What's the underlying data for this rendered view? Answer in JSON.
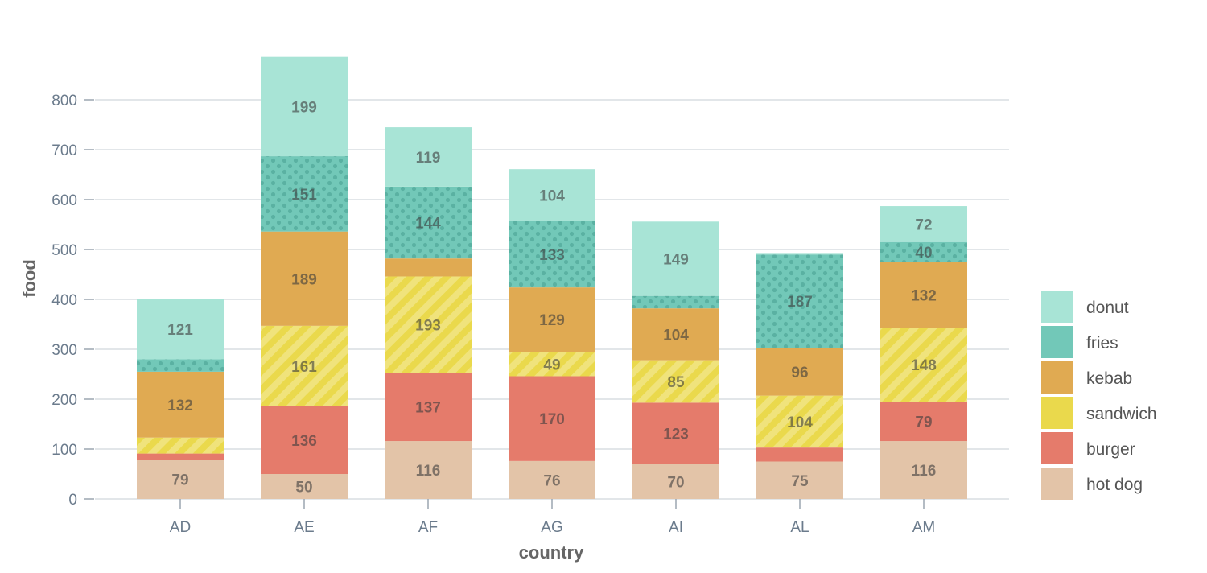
{
  "chart_data": {
    "type": "bar",
    "stacked": true,
    "categories": [
      "AD",
      "AE",
      "AF",
      "AG",
      "AI",
      "AL",
      "AM"
    ],
    "series": [
      {
        "name": "hot dog",
        "color": "#e3c4a8",
        "pattern": "none",
        "values": [
          79,
          50,
          116,
          76,
          70,
          75,
          116
        ]
      },
      {
        "name": "burger",
        "color": "#e57b6b",
        "pattern": "none",
        "values": [
          12,
          136,
          137,
          170,
          123,
          28,
          79
        ]
      },
      {
        "name": "sandwich",
        "color": "#ead94c",
        "pattern": "stripes",
        "values": [
          32,
          161,
          193,
          49,
          85,
          104,
          148
        ]
      },
      {
        "name": "kebab",
        "color": "#e0aa52",
        "pattern": "none",
        "values": [
          132,
          189,
          36,
          129,
          104,
          96,
          132
        ]
      },
      {
        "name": "fries",
        "color": "#72c8b8",
        "pattern": "dots",
        "values": [
          25,
          151,
          144,
          133,
          25,
          187,
          40
        ]
      },
      {
        "name": "donut",
        "color": "#a8e4d6",
        "pattern": "none",
        "values": [
          121,
          199,
          119,
          104,
          149,
          3,
          72
        ]
      }
    ],
    "data_labels": [
      [
        "79",
        "50",
        "116",
        "76",
        "70",
        "75",
        "116"
      ],
      [
        "",
        "136",
        "137",
        "170",
        "123",
        "",
        "79"
      ],
      [
        "",
        "161",
        "193",
        "49",
        "85",
        "104",
        "148"
      ],
      [
        "132",
        "189",
        "",
        "129",
        "104",
        "96",
        "132"
      ],
      [
        "",
        "151",
        "144",
        "133",
        "",
        "187",
        "40"
      ],
      [
        "121",
        "199",
        "119",
        "104",
        "149",
        "",
        "72"
      ]
    ],
    "xlabel": "country",
    "ylabel": "food",
    "ylim": [
      0,
      900
    ],
    "yticks": [
      0,
      100,
      200,
      300,
      400,
      500,
      600,
      700,
      800
    ],
    "grid": true,
    "legend_position": "right"
  }
}
